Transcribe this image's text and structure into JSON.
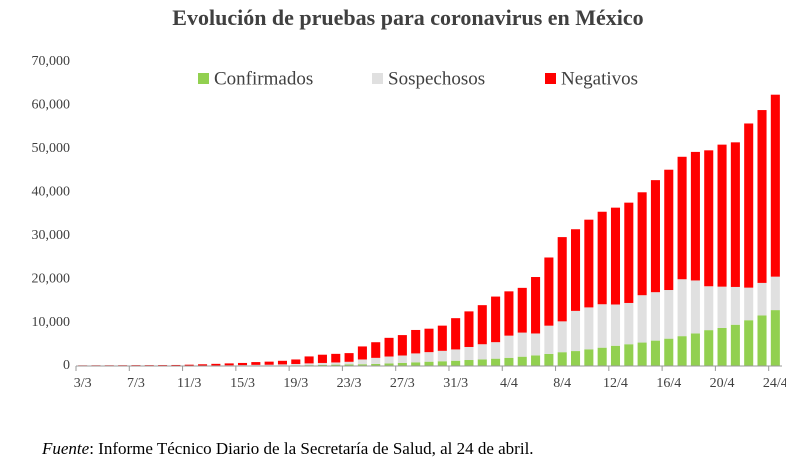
{
  "chart_data": {
    "type": "stacked_bar",
    "title": "Evolución de pruebas para coronavirus en México",
    "source": {
      "label": "Fuente",
      "text": ": Informe Técnico Diario de la Secretaría de Salud, al 24 de abril."
    },
    "categories": [
      "3/3",
      null,
      null,
      null,
      "7/3",
      null,
      null,
      null,
      "11/3",
      null,
      null,
      null,
      "15/3",
      null,
      null,
      null,
      "19/3",
      null,
      null,
      null,
      "23/3",
      null,
      null,
      null,
      "27/3",
      null,
      null,
      null,
      "31/3",
      null,
      null,
      null,
      "4/4",
      null,
      null,
      null,
      "8/4",
      null,
      null,
      null,
      "12/4",
      null,
      null,
      null,
      "16/4",
      null,
      null,
      null,
      "20/4",
      null,
      null,
      null,
      "24/4"
    ],
    "series": [
      {
        "name": "Confirmados",
        "color": "#92d050",
        "values": [
          5,
          5,
          5,
          6,
          7,
          7,
          7,
          7,
          12,
          15,
          26,
          41,
          53,
          82,
          93,
          118,
          164,
          203,
          251,
          316,
          367,
          405,
          475,
          585,
          717,
          848,
          993,
          1094,
          1215,
          1378,
          1510,
          1688,
          1890,
          2143,
          2439,
          2785,
          3181,
          3441,
          3844,
          4219,
          4661,
          5014,
          5399,
          5847,
          6297,
          6875,
          7497,
          8261,
          8772,
          9501,
          10544,
          11633,
          12872
        ]
      },
      {
        "name": "Sospechosos",
        "color": "#e0e0e0",
        "values": [
          30,
          30,
          35,
          35,
          40,
          40,
          45,
          50,
          60,
          80,
          100,
          120,
          150,
          180,
          200,
          250,
          300,
          400,
          450,
          500,
          600,
          1100,
          1400,
          1600,
          1700,
          2050,
          2200,
          2400,
          2600,
          3000,
          3500,
          3800,
          5100,
          5550,
          5050,
          6500,
          7100,
          9250,
          9650,
          10000,
          9500,
          9500,
          10900,
          11150,
          11200,
          13100,
          12200,
          10100,
          9500,
          8700,
          7500,
          7500,
          7700
        ]
      },
      {
        "name": "Negativos",
        "color": "#ff0000",
        "values": [
          120,
          130,
          130,
          140,
          150,
          150,
          160,
          180,
          230,
          300,
          370,
          440,
          500,
          640,
          710,
          830,
          1040,
          1600,
          1900,
          1980,
          2000,
          3000,
          3600,
          4300,
          4700,
          5400,
          5400,
          5800,
          7200,
          8200,
          9000,
          10500,
          10200,
          10300,
          13000,
          15700,
          19400,
          18800,
          20200,
          21300,
          22300,
          23100,
          23700,
          25800,
          27700,
          28200,
          29600,
          31300,
          32700,
          33300,
          37800,
          39800,
          41900
        ]
      }
    ],
    "ylim": [
      0,
      70000
    ],
    "yticks": [
      0,
      {
        "value": 10000,
        "label": "10,000"
      },
      {
        "value": 20000,
        "label": "20,000"
      },
      {
        "value": 30000,
        "label": "30,000"
      },
      {
        "value": 40000,
        "label": "40,000"
      },
      {
        "value": 50000,
        "label": "50,000"
      },
      {
        "value": 60000,
        "label": "60,000"
      },
      {
        "value": 70000,
        "label": "70,000"
      }
    ],
    "grid": false,
    "legend": "top"
  }
}
